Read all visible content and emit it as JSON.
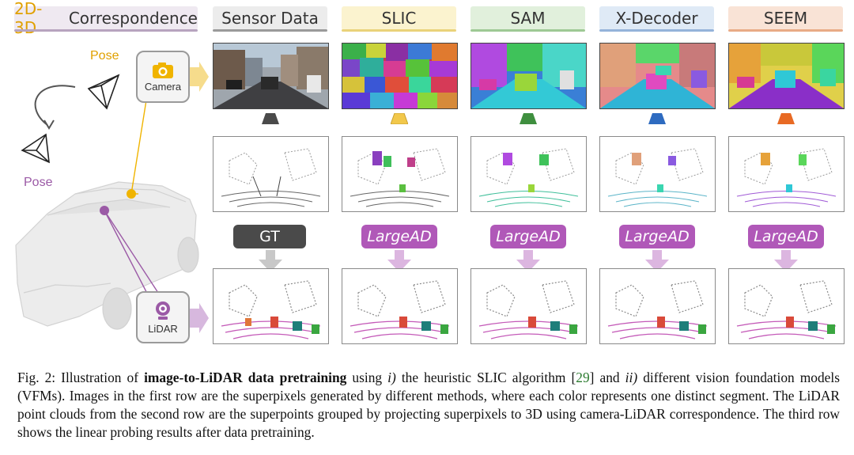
{
  "figure": {
    "header_left_prefix": "2D-3D",
    "header_left_suffix": " Correspondence",
    "columns": [
      {
        "key": "sensor",
        "header": "Sensor Data",
        "accent": "#5b5b5b",
        "badge": "GT"
      },
      {
        "key": "slic",
        "header": "SLIC",
        "accent": "#f2c84b",
        "badge": "LargeAD"
      },
      {
        "key": "sam",
        "header": "SAM",
        "accent": "#3f8f3f",
        "badge": "LargeAD"
      },
      {
        "key": "xdecoder",
        "header": "X-Decoder",
        "accent": "#2e6bc0",
        "badge": "LargeAD"
      },
      {
        "key": "seem",
        "header": "SEEM",
        "accent": "#e86a24",
        "badge": "LargeAD"
      }
    ],
    "pose_top": "Pose",
    "pose_left": "Pose",
    "camera_label": "Camera",
    "lidar_label": "LiDAR",
    "colors": {
      "camera": "#f0b400",
      "lidar": "#9b5aa6",
      "badge_purple": "#b058b8",
      "badge_dark": "#4a4a4a"
    }
  },
  "caption": {
    "fig": "Fig. 2: Illustration of ",
    "bold": "image-to-LiDAR data pretraining",
    "t1": " using ",
    "i1": "i)",
    "t2": " the heuristic SLIC algorithm [",
    "ref": "29",
    "t3": "] and ",
    "i2": "ii)",
    "t4": " different vision foundation models (VFMs). Images in the first row are the superpixels generated by different methods, where each color represents one distinct segment. The LiDAR point clouds from the second row are the superpoints grouped by projecting superpixels to 3D using camera-LiDAR correspondence. The third row shows the linear probing results after data pretraining."
  }
}
